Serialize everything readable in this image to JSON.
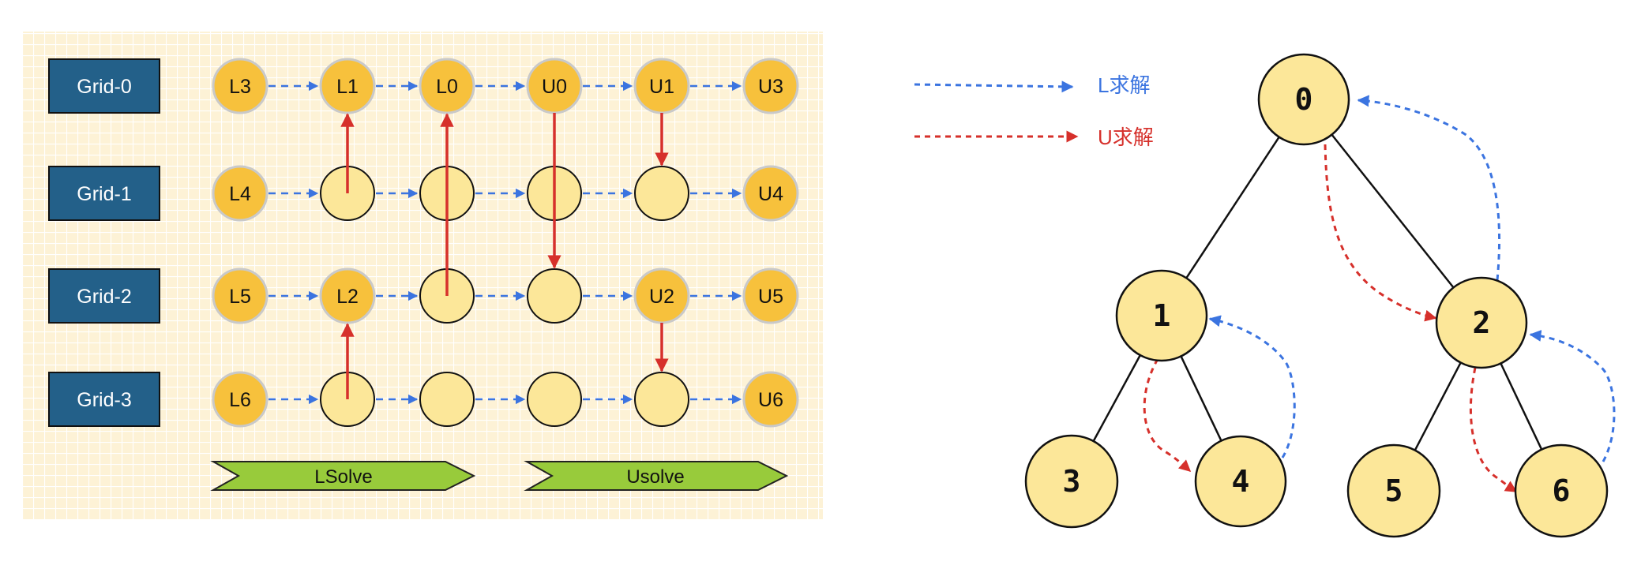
{
  "colors": {
    "panel_bg": "#fdf2d6",
    "panel_grid": "#ffffff",
    "grid_box": "#236089",
    "grid_box_text": "#ffffff",
    "node_labeled": "#f7c13c",
    "node_labeled_stroke": "#c9c9c9",
    "node_empty": "#fce799",
    "node_empty_stroke": "#111111",
    "arrow_l": "#3b74e0",
    "arrow_u": "#d6302b",
    "tree_node": "#fce799",
    "banner": "#98cb3b",
    "text_dark": "#111111"
  },
  "grid_diagram": {
    "grid_labels": [
      "Grid-0",
      "Grid-1",
      "Grid-2",
      "Grid-3"
    ],
    "columns": 6,
    "nodes": [
      [
        "L3",
        "L1",
        "L0",
        "U0",
        "U1",
        "U3"
      ],
      [
        "L4",
        "",
        "",
        "",
        "",
        "U4"
      ],
      [
        "L5",
        "L2",
        "",
        "",
        "U2",
        "U5"
      ],
      [
        "L6",
        "",
        "",
        "",
        "",
        "U6"
      ]
    ],
    "vertical_arrows": [
      {
        "col": 1,
        "from_row": 1,
        "to_row": 0
      },
      {
        "col": 2,
        "from_row": 2,
        "to_row": 0
      },
      {
        "col": 3,
        "from_row": 0,
        "to_row": 2
      },
      {
        "col": 4,
        "from_row": 0,
        "to_row": 1
      },
      {
        "col": 1,
        "from_row": 3,
        "to_row": 2
      },
      {
        "col": 4,
        "from_row": 2,
        "to_row": 3
      }
    ],
    "banners": {
      "lsolve": "LSolve",
      "usolve": "Usolve"
    }
  },
  "legend": {
    "l_label": "L求解",
    "u_label": "U求解"
  },
  "tree": {
    "nodes": [
      "0",
      "1",
      "2",
      "3",
      "4",
      "5",
      "6"
    ],
    "edges": [
      [
        0,
        1
      ],
      [
        0,
        2
      ],
      [
        1,
        3
      ],
      [
        1,
        4
      ],
      [
        2,
        5
      ],
      [
        2,
        6
      ]
    ],
    "l_arrows": [
      [
        4,
        1
      ],
      [
        6,
        2
      ],
      [
        2,
        0
      ]
    ],
    "u_arrows": [
      [
        0,
        2
      ],
      [
        1,
        4
      ],
      [
        2,
        6
      ]
    ]
  }
}
